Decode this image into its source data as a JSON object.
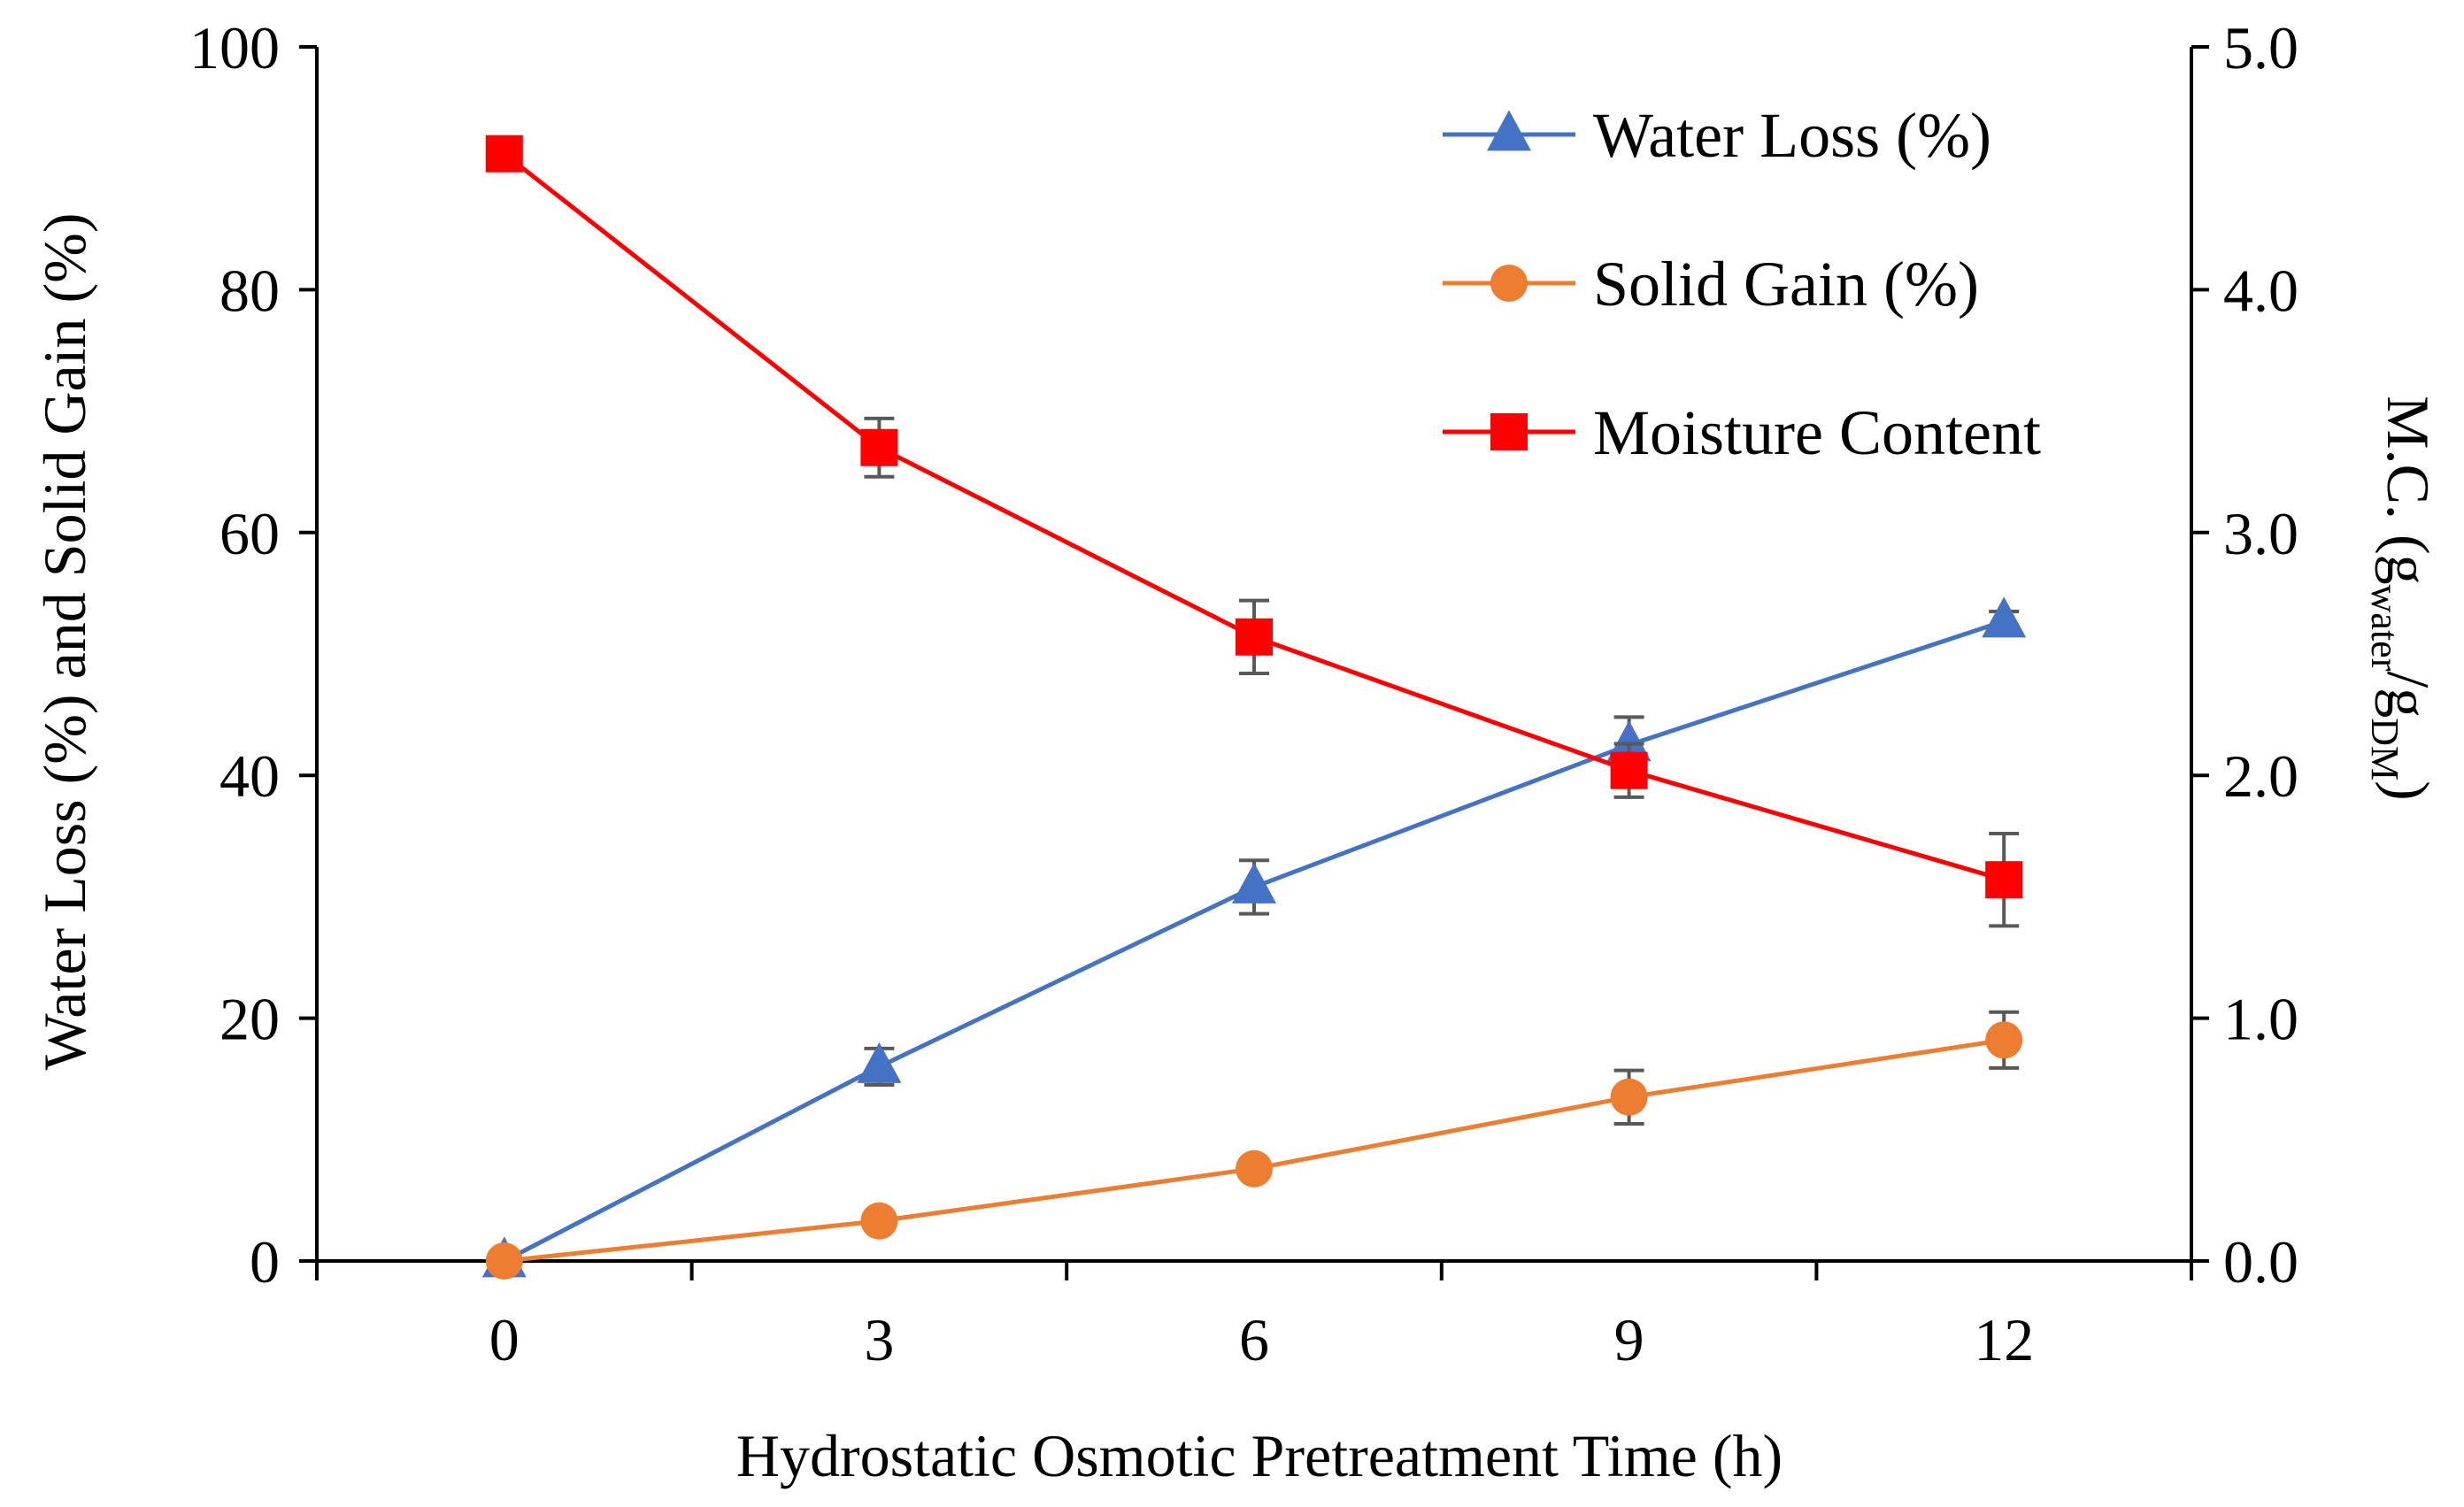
{
  "chart_data": {
    "type": "line",
    "xlabel": "Hydrostatic Osmotic Pretreatment Time (h)",
    "ylabel": "Water Loss (%) and Solid Gain (%)",
    "y2label": {
      "main": "M.C. (g",
      "sub1": "water",
      "slash": "/g",
      "sub2": "DM",
      "close": ")"
    },
    "x": [
      0,
      3,
      6,
      9,
      12
    ],
    "x_ticks": [
      "0",
      "3",
      "6",
      "9",
      "12"
    ],
    "xlim": [
      -1.5,
      13.5
    ],
    "ylim": [
      0,
      100
    ],
    "y_ticks": [
      "0",
      "20",
      "40",
      "60",
      "80",
      "100"
    ],
    "y2lim": [
      0,
      5
    ],
    "y2_ticks": [
      "0.0",
      "1.0",
      "2.0",
      "3.0",
      "4.0",
      "5.0"
    ],
    "grid": false,
    "legend_position": "top-right",
    "series": [
      {
        "name": "Water Loss (%)",
        "axis": "left",
        "marker": "triangle",
        "color": "#4472C4",
        "values": [
          0,
          16,
          30.8,
          42.5,
          52.7
        ],
        "errors": [
          0,
          1.5,
          2.2,
          2.3,
          0.8
        ]
      },
      {
        "name": "Solid Gain (%)",
        "axis": "left",
        "marker": "circle",
        "color": "#ED7D31",
        "values": [
          0,
          3.3,
          7.6,
          13.5,
          18.2
        ],
        "errors": [
          0,
          0.4,
          0.6,
          2.2,
          2.3
        ]
      },
      {
        "name": "Moisture Content",
        "axis": "right",
        "marker": "square",
        "color": "#FF0000",
        "values": [
          4.56,
          3.35,
          2.57,
          2.02,
          1.57
        ],
        "errors": [
          0,
          0.12,
          0.15,
          0.11,
          0.19
        ]
      }
    ]
  }
}
